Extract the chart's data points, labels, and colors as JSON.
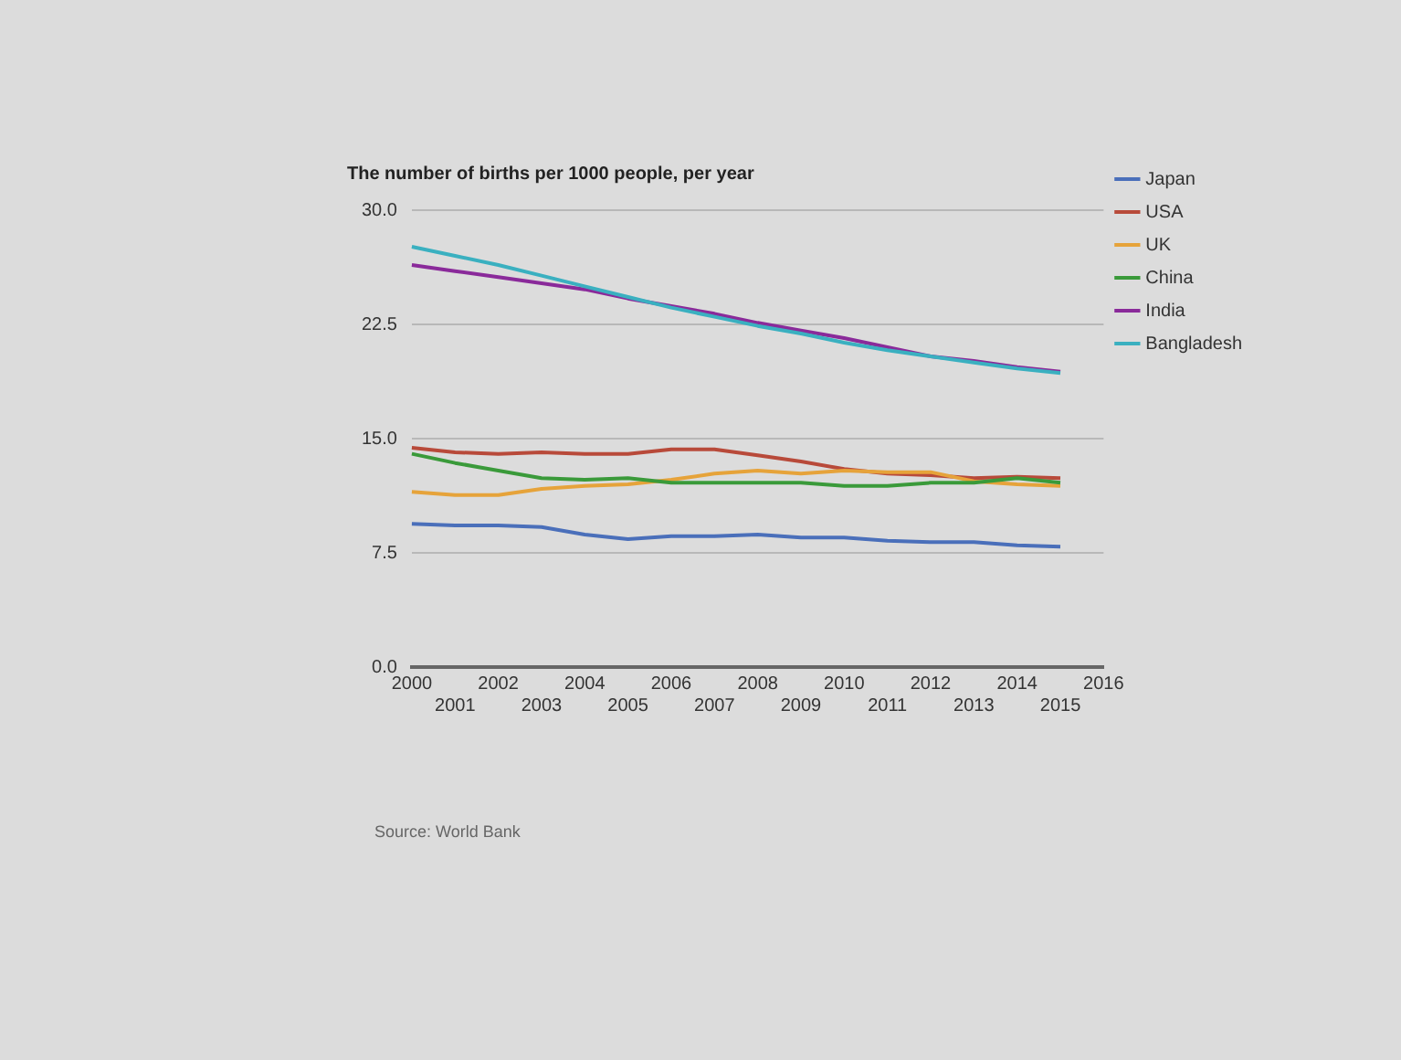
{
  "chart_data": {
    "type": "line",
    "title": "The number of births per 1000 people, per year",
    "categories": [
      "2000",
      "2001",
      "2002",
      "2003",
      "2004",
      "2005",
      "2006",
      "2007",
      "2008",
      "2009",
      "2010",
      "2011",
      "2012",
      "2013",
      "2014",
      "2015",
      "2016"
    ],
    "series": [
      {
        "name": "Japan",
        "color": "#4a6fba",
        "values": [
          9.4,
          9.3,
          9.3,
          9.2,
          8.7,
          8.4,
          8.6,
          8.6,
          8.7,
          8.5,
          8.5,
          8.3,
          8.2,
          8.2,
          8.0,
          7.9,
          null
        ]
      },
      {
        "name": "USA",
        "color": "#b84a3a",
        "values": [
          14.4,
          14.1,
          14.0,
          14.1,
          14.0,
          14.0,
          14.3,
          14.3,
          13.9,
          13.5,
          13.0,
          12.7,
          12.6,
          12.4,
          12.5,
          12.4,
          null
        ]
      },
      {
        "name": "UK",
        "color": "#e6a33a",
        "values": [
          11.5,
          11.3,
          11.3,
          11.7,
          11.9,
          12.0,
          12.3,
          12.7,
          12.9,
          12.7,
          12.9,
          12.8,
          12.8,
          12.2,
          12.0,
          11.9,
          null
        ]
      },
      {
        "name": "China",
        "color": "#3a9a3a",
        "values": [
          14.0,
          13.4,
          12.9,
          12.4,
          12.3,
          12.4,
          12.1,
          12.1,
          12.1,
          12.1,
          11.9,
          11.9,
          12.1,
          12.1,
          12.4,
          12.1,
          null
        ]
      },
      {
        "name": "India",
        "color": "#8a2a9a",
        "values": [
          26.4,
          26.0,
          25.6,
          25.2,
          24.8,
          24.2,
          23.7,
          23.2,
          22.6,
          22.1,
          21.6,
          21.0,
          20.4,
          20.1,
          19.7,
          19.4,
          null
        ]
      },
      {
        "name": "Bangladesh",
        "color": "#3ab0c0",
        "values": [
          27.6,
          27.0,
          26.4,
          25.7,
          25.0,
          24.3,
          23.6,
          23.0,
          22.4,
          21.9,
          21.3,
          20.8,
          20.4,
          20.0,
          19.6,
          19.3,
          null
        ]
      }
    ],
    "ylim": [
      0,
      30
    ],
    "yticks": [
      {
        "value": 0,
        "label": "0.0"
      },
      {
        "value": 7.5,
        "label": "7.5"
      },
      {
        "value": 15,
        "label": "15.0"
      },
      {
        "value": 22.5,
        "label": "22.5"
      },
      {
        "value": 30,
        "label": "30.0"
      }
    ],
    "grid": "y",
    "legend": "right",
    "marker": "none",
    "line_style": "solid",
    "annotations": [
      "Source: World Bank"
    ]
  }
}
